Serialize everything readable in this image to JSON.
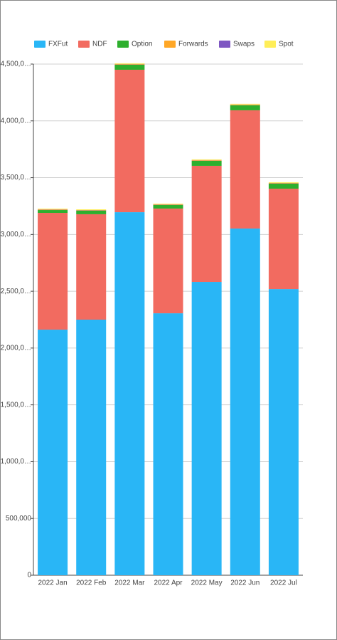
{
  "chart_data": {
    "type": "bar",
    "stacked": true,
    "categories": [
      "2022 Jan",
      "2022 Feb",
      "2022 Mar",
      "2022 Apr",
      "2022 May",
      "2022 Jun",
      "2022 Jul"
    ],
    "series": [
      {
        "name": "FXFut",
        "color": "#29b6f6",
        "values": [
          2162000,
          2250000,
          3196000,
          2306000,
          2582000,
          3052000,
          2519000
        ]
      },
      {
        "name": "NDF",
        "color": "#f26b60",
        "values": [
          1028000,
          928000,
          1254000,
          922000,
          1022000,
          1041000,
          884000
        ]
      },
      {
        "name": "Option",
        "color": "#2eaf2e",
        "values": [
          25000,
          31000,
          44000,
          31000,
          44000,
          44000,
          44000
        ]
      },
      {
        "name": "Forwards",
        "color": "#ffa726",
        "values": [
          4000,
          4000,
          5000,
          4000,
          5000,
          5000,
          5000
        ]
      },
      {
        "name": "Swaps",
        "color": "#7e57c2",
        "values": [
          2000,
          2000,
          2000,
          2000,
          2000,
          2000,
          2000
        ]
      },
      {
        "name": "Spot",
        "color": "#ffee58",
        "values": [
          6000,
          6000,
          6000,
          6000,
          6000,
          6000,
          6000
        ]
      }
    ],
    "ylim": [
      0,
      4500000
    ],
    "yticks": [
      0,
      {
        "value": 500000,
        "label": "500,000"
      },
      {
        "value": 1000000,
        "label": "1,000,0…"
      },
      {
        "value": 1500000,
        "label": "1,500,0…"
      },
      {
        "value": 2000000,
        "label": "2,000,0…"
      },
      {
        "value": 2500000,
        "label": "2,500,0…"
      },
      {
        "value": 3000000,
        "label": "3,000,0…"
      },
      {
        "value": 3500000,
        "label": "3,500,0…"
      },
      {
        "value": 4000000,
        "label": "4,000,0…"
      },
      {
        "value": 4500000,
        "label": "4,500,0…"
      }
    ],
    "grid": true,
    "legend": "top"
  }
}
